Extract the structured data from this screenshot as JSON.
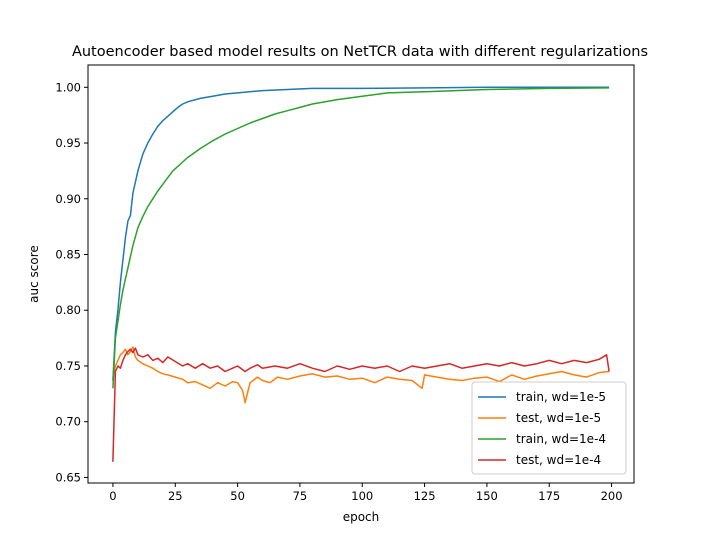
{
  "chart_data": {
    "type": "line",
    "title": "Autoencoder based model results on NetTCR data with different regularizations",
    "xlabel": "epoch",
    "ylabel": "auc score",
    "xlim": [
      -10,
      209
    ],
    "ylim": [
      0.645,
      1.02
    ],
    "xticks": [
      0,
      25,
      50,
      75,
      100,
      125,
      150,
      175,
      200
    ],
    "yticks": [
      0.65,
      0.7,
      0.75,
      0.8,
      0.85,
      0.9,
      0.95,
      1.0
    ],
    "ytick_labels": [
      "0.65",
      "0.70",
      "0.75",
      "0.80",
      "0.85",
      "0.90",
      "0.95",
      "1.00"
    ],
    "grid": false,
    "legend_position": "lower-right",
    "series": [
      {
        "name": "train, wd=1e-5",
        "color": "#1f77b4",
        "x": [
          0,
          1,
          2,
          3,
          4,
          5,
          6,
          7,
          8,
          9,
          10,
          12,
          14,
          16,
          18,
          20,
          22,
          24,
          26,
          28,
          30,
          35,
          40,
          45,
          50,
          60,
          70,
          80,
          100,
          125,
          150,
          175,
          199
        ],
        "y": [
          0.737,
          0.78,
          0.8,
          0.825,
          0.845,
          0.865,
          0.88,
          0.885,
          0.905,
          0.915,
          0.925,
          0.94,
          0.95,
          0.958,
          0.965,
          0.97,
          0.974,
          0.978,
          0.982,
          0.985,
          0.987,
          0.99,
          0.992,
          0.994,
          0.995,
          0.997,
          0.998,
          0.999,
          0.999,
          0.9995,
          1.0,
          1.0,
          1.0
        ]
      },
      {
        "name": "test, wd=1e-5",
        "color": "#ff7f0e",
        "x": [
          0,
          1,
          2,
          3,
          4,
          5,
          6,
          7,
          8,
          9,
          10,
          12,
          14,
          16,
          18,
          20,
          22,
          25,
          28,
          30,
          33,
          36,
          39,
          42,
          45,
          48,
          50,
          52,
          53,
          55,
          58,
          60,
          63,
          66,
          70,
          75,
          80,
          85,
          90,
          95,
          100,
          105,
          110,
          115,
          120,
          124,
          125,
          130,
          135,
          140,
          145,
          150,
          155,
          160,
          165,
          170,
          175,
          180,
          185,
          190,
          195,
          199
        ],
        "y": [
          0.74,
          0.75,
          0.755,
          0.76,
          0.762,
          0.765,
          0.76,
          0.763,
          0.767,
          0.758,
          0.755,
          0.752,
          0.75,
          0.748,
          0.745,
          0.743,
          0.742,
          0.74,
          0.738,
          0.735,
          0.736,
          0.733,
          0.73,
          0.735,
          0.732,
          0.736,
          0.735,
          0.728,
          0.717,
          0.735,
          0.74,
          0.737,
          0.735,
          0.74,
          0.738,
          0.741,
          0.743,
          0.74,
          0.741,
          0.738,
          0.739,
          0.735,
          0.74,
          0.738,
          0.737,
          0.73,
          0.742,
          0.74,
          0.738,
          0.737,
          0.739,
          0.74,
          0.736,
          0.742,
          0.738,
          0.741,
          0.743,
          0.745,
          0.742,
          0.74,
          0.744,
          0.745
        ]
      },
      {
        "name": "train, wd=1e-4",
        "color": "#2ca02c",
        "x": [
          0,
          1,
          2,
          3,
          4,
          5,
          6,
          7,
          8,
          9,
          10,
          12,
          14,
          16,
          18,
          20,
          22,
          24,
          26,
          28,
          30,
          35,
          40,
          45,
          50,
          55,
          60,
          65,
          70,
          75,
          80,
          90,
          100,
          110,
          125,
          150,
          175,
          199
        ],
        "y": [
          0.73,
          0.775,
          0.79,
          0.805,
          0.818,
          0.828,
          0.838,
          0.848,
          0.858,
          0.866,
          0.874,
          0.884,
          0.893,
          0.9,
          0.907,
          0.913,
          0.919,
          0.925,
          0.929,
          0.933,
          0.937,
          0.945,
          0.952,
          0.958,
          0.963,
          0.968,
          0.972,
          0.976,
          0.979,
          0.982,
          0.985,
          0.989,
          0.992,
          0.995,
          0.996,
          0.998,
          0.999,
          0.9995
        ]
      },
      {
        "name": "test, wd=1e-4",
        "color": "#d62728",
        "x": [
          0,
          1,
          2,
          3,
          4,
          5,
          6,
          7,
          8,
          9,
          10,
          12,
          14,
          16,
          18,
          20,
          22,
          25,
          28,
          30,
          33,
          36,
          39,
          42,
          45,
          48,
          50,
          53,
          55,
          58,
          60,
          65,
          70,
          75,
          80,
          85,
          90,
          95,
          100,
          105,
          110,
          115,
          120,
          125,
          130,
          135,
          140,
          145,
          150,
          155,
          160,
          165,
          170,
          175,
          180,
          185,
          190,
          195,
          198,
          199
        ],
        "y": [
          0.664,
          0.745,
          0.75,
          0.748,
          0.755,
          0.76,
          0.763,
          0.765,
          0.762,
          0.766,
          0.76,
          0.758,
          0.76,
          0.755,
          0.757,
          0.753,
          0.758,
          0.754,
          0.75,
          0.752,
          0.748,
          0.752,
          0.748,
          0.75,
          0.745,
          0.748,
          0.75,
          0.745,
          0.748,
          0.751,
          0.748,
          0.75,
          0.748,
          0.752,
          0.748,
          0.745,
          0.75,
          0.747,
          0.75,
          0.748,
          0.75,
          0.745,
          0.75,
          0.748,
          0.75,
          0.752,
          0.748,
          0.75,
          0.752,
          0.75,
          0.753,
          0.75,
          0.752,
          0.755,
          0.752,
          0.755,
          0.753,
          0.756,
          0.76,
          0.745
        ]
      }
    ]
  }
}
